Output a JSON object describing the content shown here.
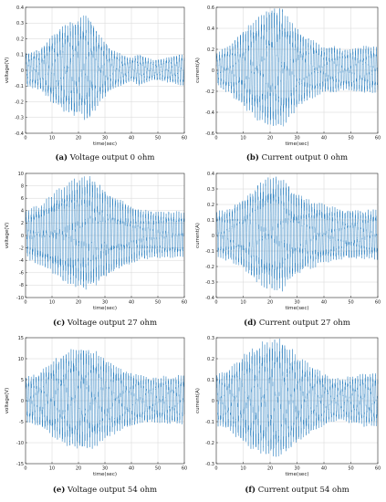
{
  "chart_data": [
    {
      "type": "line",
      "caption_letter": "(a)",
      "caption_text": " Voltage output 0 ohm",
      "xlabel": "time(sec)",
      "ylabel": "voltage(V)",
      "xlim": [
        0,
        60
      ],
      "ylim": [
        -0.4,
        0.4
      ],
      "xticks": [
        0,
        10,
        20,
        30,
        40,
        50,
        60
      ],
      "yticks": [
        -0.4,
        -0.3,
        -0.2,
        -0.1,
        0,
        0.1,
        0.2,
        0.3,
        0.4
      ],
      "grid": true,
      "series": [
        {
          "x": [
            0,
            5,
            10,
            15,
            20,
            24,
            28,
            33,
            40,
            43,
            48,
            55,
            60
          ],
          "y": [
            0.1,
            0.12,
            0.2,
            0.27,
            0.3,
            0.32,
            0.2,
            0.12,
            0.07,
            0.1,
            0.06,
            0.08,
            0.1
          ]
        }
      ],
      "color": "#2a7fc0"
    },
    {
      "type": "line",
      "caption_letter": "(b)",
      "caption_text": " Current output 0 ohm",
      "xlabel": "time(sec)",
      "ylabel": "current(A)",
      "xlim": [
        0,
        60
      ],
      "ylim": [
        -0.6,
        0.6
      ],
      "xticks": [
        0,
        10,
        20,
        30,
        40,
        50,
        60
      ],
      "yticks": [
        -0.6,
        -0.4,
        -0.2,
        0,
        0.2,
        0.4,
        0.6
      ],
      "grid": true,
      "series": [
        {
          "x": [
            0,
            5,
            10,
            15,
            20,
            24,
            28,
            33,
            40,
            43,
            48,
            55,
            60
          ],
          "y": [
            0.15,
            0.22,
            0.35,
            0.45,
            0.55,
            0.55,
            0.42,
            0.3,
            0.2,
            0.22,
            0.18,
            0.22,
            0.2
          ]
        }
      ],
      "color": "#2a7fc0"
    },
    {
      "type": "line",
      "caption_letter": "(c)",
      "caption_text": " Voltage output 27 ohm",
      "xlabel": "time(sec)",
      "ylabel": "voltage(V)",
      "xlim": [
        0,
        60
      ],
      "ylim": [
        -10,
        10
      ],
      "xticks": [
        0,
        10,
        20,
        30,
        40,
        50,
        60
      ],
      "yticks": [
        -10,
        -8,
        -6,
        -4,
        -2,
        0,
        2,
        4,
        6,
        8,
        10
      ],
      "grid": true,
      "series": [
        {
          "x": [
            0,
            5,
            10,
            15,
            20,
            24,
            28,
            33,
            40,
            43,
            48,
            55,
            60
          ],
          "y": [
            3.5,
            4.5,
            6,
            7.5,
            8.5,
            9,
            7.5,
            6,
            4.5,
            4,
            3.5,
            3.5,
            3.5
          ]
        }
      ],
      "color": "#2a7fc0"
    },
    {
      "type": "line",
      "caption_letter": "(d)",
      "caption_text": " Current output 27 ohm",
      "xlabel": "time(sec)",
      "ylabel": "current(A)",
      "xlim": [
        0,
        60
      ],
      "ylim": [
        -0.4,
        0.4
      ],
      "xticks": [
        0,
        10,
        20,
        30,
        40,
        50,
        60
      ],
      "yticks": [
        -0.4,
        -0.3,
        -0.2,
        -0.1,
        0,
        0.1,
        0.2,
        0.3,
        0.4
      ],
      "grid": true,
      "series": [
        {
          "x": [
            0,
            5,
            10,
            15,
            20,
            24,
            28,
            33,
            40,
            43,
            48,
            55,
            60
          ],
          "y": [
            0.14,
            0.16,
            0.22,
            0.3,
            0.34,
            0.36,
            0.28,
            0.22,
            0.18,
            0.17,
            0.15,
            0.15,
            0.15
          ]
        }
      ],
      "color": "#2a7fc0"
    },
    {
      "type": "line",
      "caption_letter": "(e)",
      "caption_text": " Voltage output 54 ohm",
      "xlabel": "time(sec)",
      "ylabel": "voltage(V)",
      "xlim": [
        0,
        60
      ],
      "ylim": [
        -15,
        15
      ],
      "xticks": [
        0,
        10,
        20,
        30,
        40,
        50,
        60
      ],
      "yticks": [
        -15,
        -10,
        -5,
        0,
        5,
        10,
        15
      ],
      "grid": true,
      "series": [
        {
          "x": [
            0,
            5,
            10,
            15,
            20,
            24,
            28,
            33,
            40,
            43,
            48,
            55,
            60
          ],
          "y": [
            5,
            6,
            8.5,
            10.5,
            11.5,
            11.5,
            10,
            8,
            6,
            5.5,
            5,
            5.5,
            5.5
          ]
        }
      ],
      "color": "#2a7fc0"
    },
    {
      "type": "line",
      "caption_letter": "(f)",
      "caption_text": " Current output 54 ohm",
      "xlabel": "time(sec)",
      "ylabel": "current(A)",
      "xlim": [
        0,
        60
      ],
      "ylim": [
        -0.3,
        0.3
      ],
      "xticks": [
        0,
        10,
        20,
        30,
        40,
        50,
        60
      ],
      "yticks": [
        -0.3,
        -0.2,
        -0.1,
        0,
        0.1,
        0.2,
        0.3
      ],
      "grid": true,
      "series": [
        {
          "x": [
            0,
            5,
            10,
            15,
            20,
            24,
            28,
            33,
            40,
            43,
            48,
            55,
            60
          ],
          "y": [
            0.12,
            0.14,
            0.2,
            0.24,
            0.26,
            0.27,
            0.22,
            0.17,
            0.12,
            0.1,
            0.1,
            0.12,
            0.12
          ]
        }
      ],
      "color": "#2a7fc0"
    }
  ]
}
